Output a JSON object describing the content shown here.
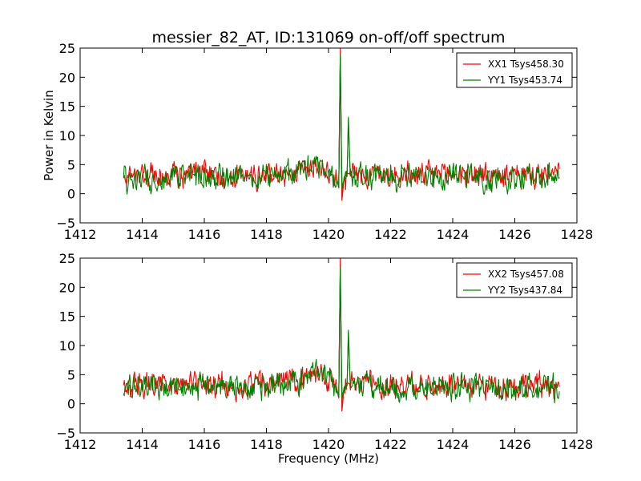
{
  "chart_data": [
    {
      "type": "line",
      "title": "messier_82_AT, ID:131069 on-off/off spectrum",
      "xlabel": "",
      "ylabel": "Power in Kelvin",
      "xlim": [
        1412,
        1428
      ],
      "ylim": [
        -5,
        25
      ],
      "xticks": [
        "1412",
        "1414",
        "1416",
        "1418",
        "1420",
        "1422",
        "1424",
        "1426",
        "1428"
      ],
      "yticks": [
        "−5",
        "0",
        "5",
        "10",
        "15",
        "20",
        "25"
      ],
      "grid": false,
      "legend": "top-right",
      "series": [
        {
          "name": "XX1 Tsys458.30",
          "color": "#ff0000",
          "x": [
            1413.4,
            1414.0,
            1415.0,
            1416.0,
            1417.0,
            1418.0,
            1419.0,
            1419.6,
            1420.0,
            1420.25,
            1420.33,
            1420.38,
            1420.43,
            1420.5,
            1420.6,
            1420.7,
            1421.0,
            1422.0,
            1423.0,
            1424.0,
            1425.0,
            1426.0,
            1427.0,
            1427.45
          ],
          "y": [
            3.0,
            3.2,
            3.0,
            3.3,
            3.0,
            3.2,
            3.8,
            5.0,
            4.5,
            3.0,
            1.0,
            25.0,
            -1.2,
            2.8,
            3.5,
            3.4,
            3.3,
            3.2,
            3.1,
            3.5,
            3.2,
            3.0,
            3.1,
            3.0
          ]
        },
        {
          "name": "YY1 Tsys453.74",
          "color": "#008000",
          "x": [
            1413.4,
            1414.0,
            1415.0,
            1416.0,
            1417.0,
            1418.0,
            1419.0,
            1419.6,
            1420.0,
            1420.25,
            1420.33,
            1420.38,
            1420.43,
            1420.5,
            1420.6,
            1420.64,
            1420.7,
            1421.0,
            1422.0,
            1423.0,
            1424.0,
            1425.0,
            1426.0,
            1427.0,
            1427.45
          ],
          "y": [
            2.6,
            2.8,
            2.6,
            2.9,
            2.6,
            2.8,
            3.7,
            5.2,
            4.2,
            2.5,
            1.2,
            24.0,
            0.8,
            2.5,
            3.0,
            13.2,
            3.0,
            2.9,
            2.8,
            2.7,
            3.0,
            2.8,
            2.6,
            2.7,
            2.6
          ]
        }
      ]
    },
    {
      "type": "line",
      "title": "",
      "xlabel": "Frequency (MHz)",
      "ylabel": "",
      "xlim": [
        1412,
        1428
      ],
      "ylim": [
        -5,
        25
      ],
      "xticks": [
        "1412",
        "1414",
        "1416",
        "1418",
        "1420",
        "1422",
        "1424",
        "1426",
        "1428"
      ],
      "yticks": [
        "−5",
        "0",
        "5",
        "10",
        "15",
        "20",
        "25"
      ],
      "grid": false,
      "legend": "top-right",
      "series": [
        {
          "name": "XX2 Tsys457.08",
          "color": "#ff0000",
          "x": [
            1413.4,
            1414.0,
            1415.0,
            1416.0,
            1417.0,
            1418.0,
            1419.0,
            1419.6,
            1420.0,
            1420.25,
            1420.33,
            1420.38,
            1420.43,
            1420.5,
            1420.6,
            1420.7,
            1421.0,
            1422.0,
            1423.0,
            1424.0,
            1425.0,
            1426.0,
            1427.0,
            1427.45
          ],
          "y": [
            3.0,
            3.3,
            3.1,
            3.3,
            3.1,
            3.3,
            3.9,
            5.1,
            4.4,
            3.0,
            1.0,
            25.0,
            -1.3,
            2.8,
            3.6,
            3.4,
            3.3,
            3.2,
            3.2,
            3.4,
            3.2,
            3.1,
            3.2,
            3.0
          ]
        },
        {
          "name": "YY2 Tsys437.84",
          "color": "#008000",
          "x": [
            1413.4,
            1414.0,
            1415.0,
            1416.0,
            1417.0,
            1418.0,
            1419.0,
            1419.6,
            1420.0,
            1420.25,
            1420.33,
            1420.38,
            1420.43,
            1420.5,
            1420.6,
            1420.64,
            1420.7,
            1421.0,
            1422.0,
            1423.0,
            1424.0,
            1425.0,
            1426.0,
            1427.0,
            1427.45
          ],
          "y": [
            2.7,
            2.9,
            2.7,
            2.9,
            2.7,
            2.9,
            3.8,
            5.3,
            4.3,
            2.6,
            1.2,
            23.5,
            0.9,
            2.6,
            3.1,
            12.7,
            3.1,
            3.0,
            2.9,
            2.8,
            3.0,
            2.8,
            2.7,
            2.8,
            2.6
          ]
        }
      ]
    }
  ]
}
